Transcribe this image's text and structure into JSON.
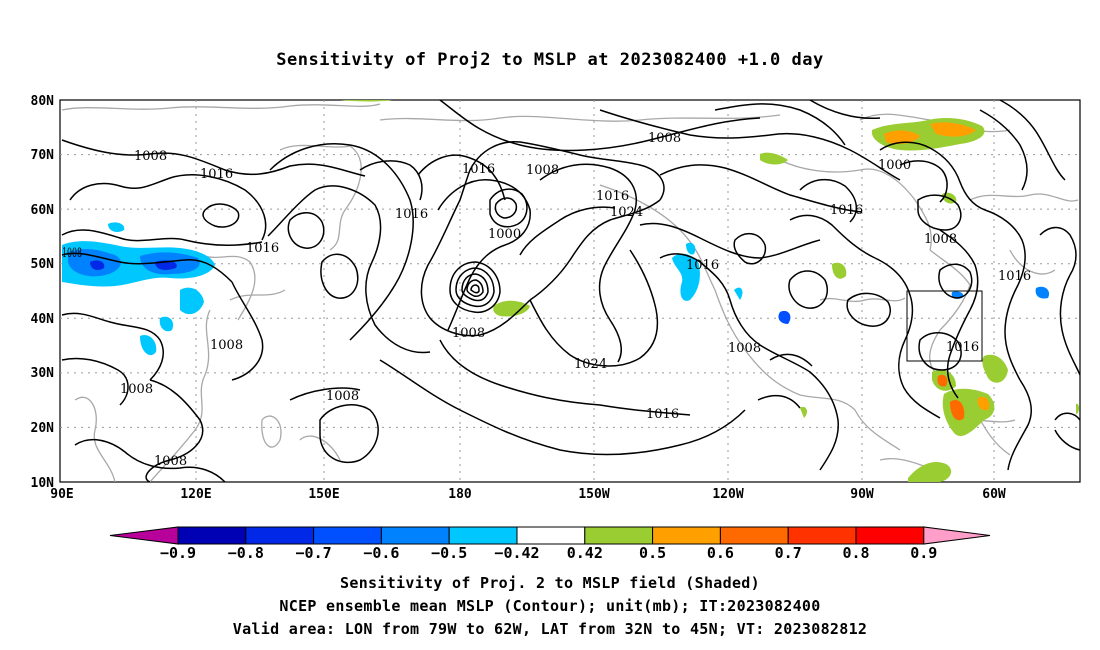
{
  "title": "Sensitivity of Proj2 to MSLP at 2023082400 +1.0 day",
  "map": {
    "lat_labels": [
      "80N",
      "70N",
      "60N",
      "50N",
      "40N",
      "30N",
      "20N",
      "10N"
    ],
    "lon_labels": [
      "90E",
      "120E",
      "150E",
      "180",
      "150W",
      "120W",
      "90W",
      "60W"
    ],
    "contour_labels": [
      "1008",
      "1016",
      "1016",
      "1016",
      "1016",
      "1008",
      "1016",
      "1008",
      "1000",
      "1016",
      "1024",
      "1008",
      "1000",
      "1008",
      "1016",
      "1008",
      "1016",
      "1016",
      "1016",
      "1008",
      "1008",
      "1008",
      "1024",
      "1008",
      "1016",
      "1008"
    ],
    "valid_box": {
      "lon": [
        "79W",
        "62W"
      ],
      "lat": [
        "32N",
        "45N"
      ]
    }
  },
  "colorbar": {
    "labels": [
      "-0.9",
      "-0.8",
      "-0.7",
      "-0.6",
      "-0.5",
      "-0.42",
      "0.42",
      "0.5",
      "0.6",
      "0.7",
      "0.8",
      "0.9"
    ],
    "colors": [
      "#b8009a",
      "#0000b4",
      "#0028e6",
      "#0050ff",
      "#0082ff",
      "#00c8ff",
      "#ffffff",
      "#9acd32",
      "#ffa000",
      "#ff6a00",
      "#ff3200",
      "#ff0000",
      "#ff9ec8"
    ]
  },
  "caption": {
    "line1": "Sensitivity of Proj. 2 to MSLP field (Shaded)",
    "line2": "NCEP ensemble mean MSLP (Contour); unit(mb); IT:2023082400",
    "line3": "Valid area: LON from 79W to 62W, LAT from 32N to 45N; VT: 2023082812"
  }
}
